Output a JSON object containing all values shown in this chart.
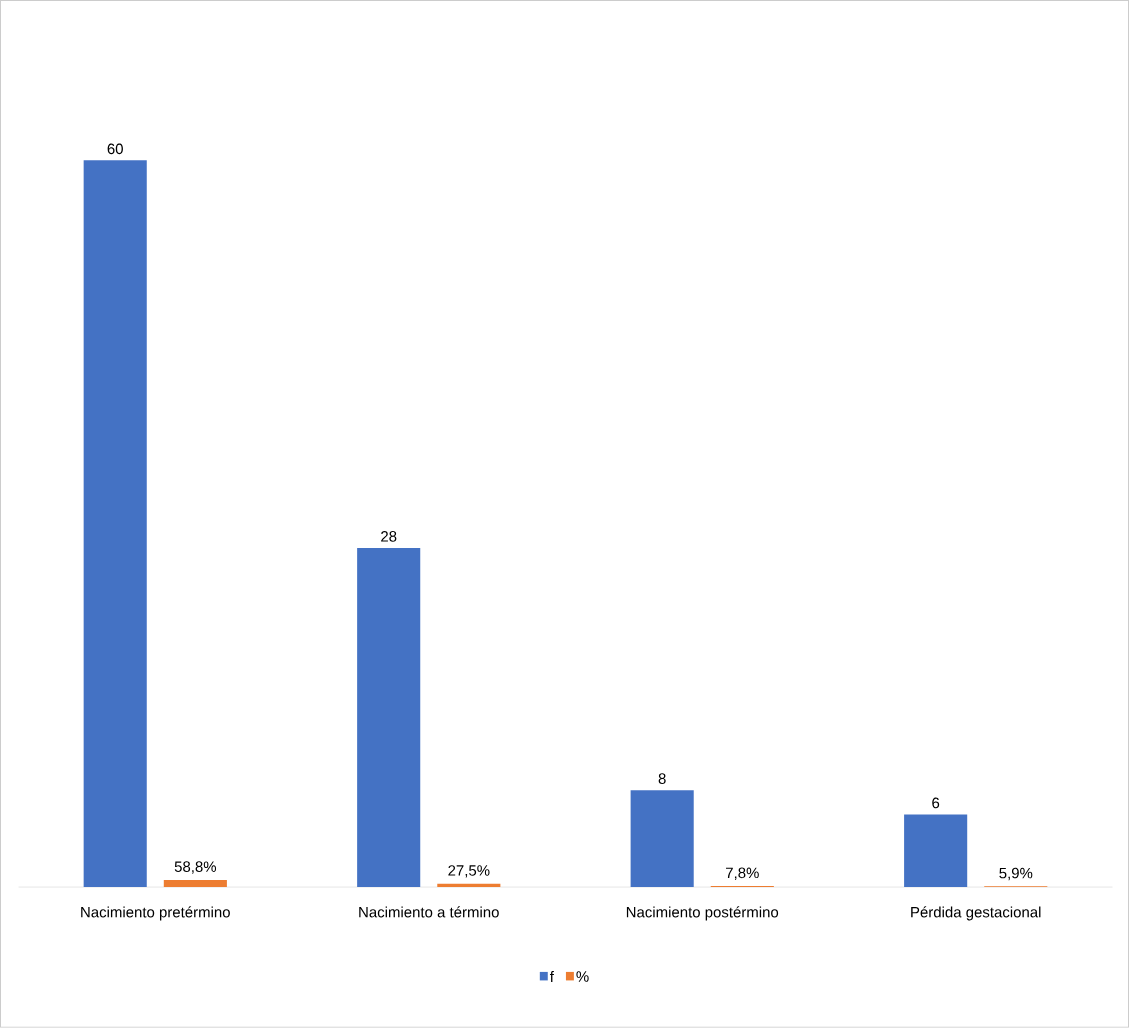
{
  "chart_data": {
    "type": "bar",
    "categories": [
      "Nacimiento pretérmino",
      "Nacimiento a término",
      "Nacimiento postérmino",
      "Pérdida gestacional"
    ],
    "series": [
      {
        "name": "f",
        "color": "#4472c4",
        "values": [
          60,
          28,
          8,
          6
        ],
        "value_labels": [
          "60",
          "28",
          "8",
          "6"
        ]
      },
      {
        "name": "%",
        "color": "#ed7d31",
        "values": [
          0.588,
          0.275,
          0.078,
          0.059
        ],
        "value_labels": [
          "58,8%",
          "27,5%",
          "7,8%",
          "5,9%"
        ]
      }
    ],
    "legend": "bottom",
    "tick_labels": "x",
    "grid": false
  }
}
